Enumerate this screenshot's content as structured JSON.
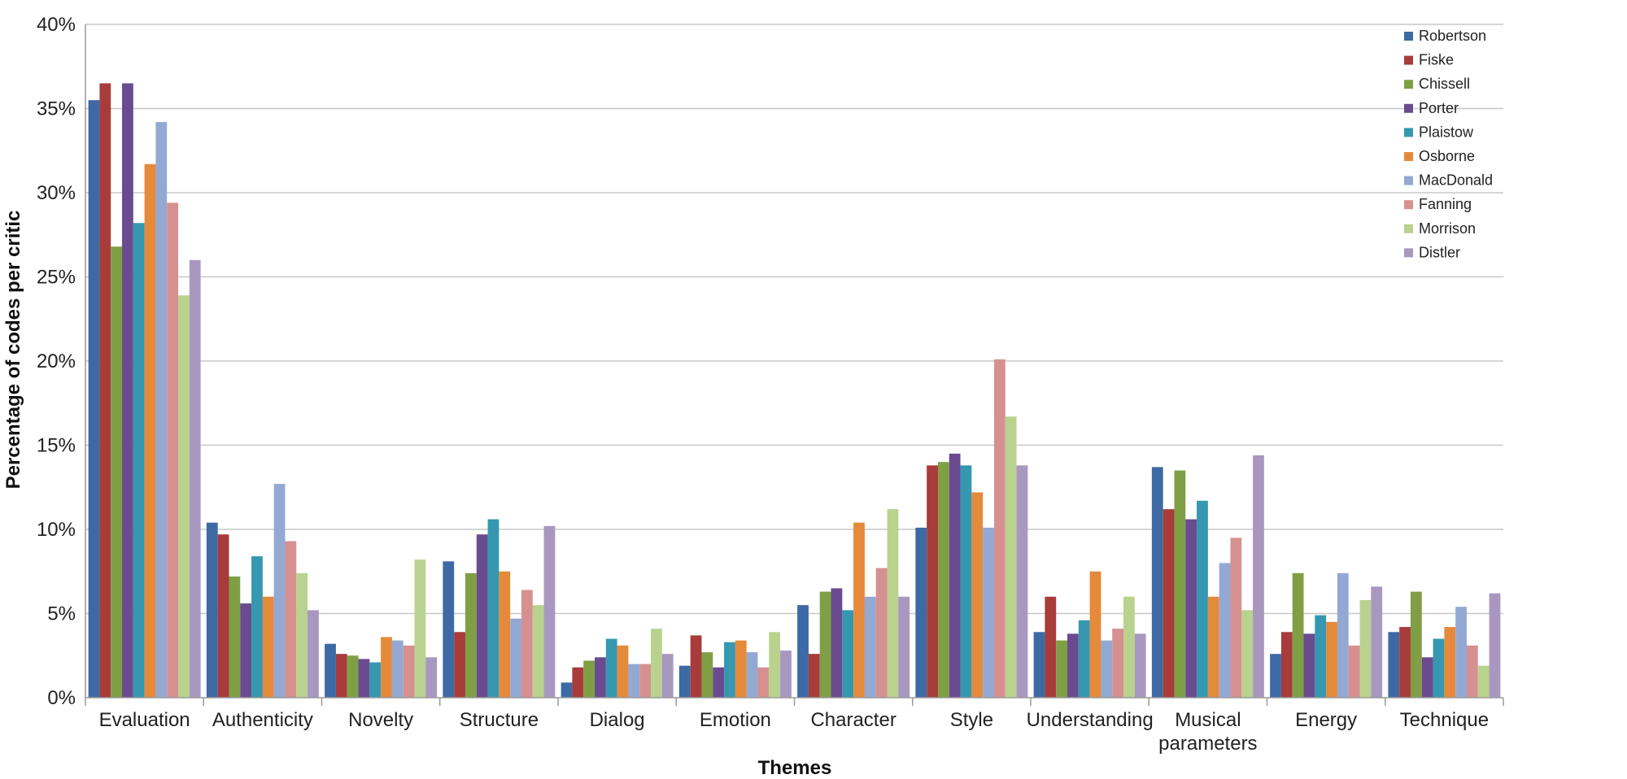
{
  "chart_data": {
    "type": "bar",
    "title": "",
    "xlabel": "Themes",
    "ylabel": "Percentage of codes per critic",
    "ylim": [
      0,
      40
    ],
    "yticks": [
      "0%",
      "5%",
      "10%",
      "15%",
      "20%",
      "25%",
      "30%",
      "35%",
      "40%"
    ],
    "grid": true,
    "legend_position": "top-right",
    "categories": [
      [
        "Evaluation"
      ],
      [
        "Authenticity"
      ],
      [
        "Novelty"
      ],
      [
        "Structure"
      ],
      [
        "Dialog"
      ],
      [
        "Emotion"
      ],
      [
        "Character"
      ],
      [
        "Style"
      ],
      [
        "Understanding"
      ],
      [
        "Musical",
        "parameters"
      ],
      [
        "Energy"
      ],
      [
        "Technique"
      ]
    ],
    "series": [
      {
        "name": "Robertson",
        "color": "#3d6aa5",
        "values": [
          35.5,
          10.4,
          3.2,
          8.1,
          0.9,
          1.9,
          5.5,
          10.1,
          3.9,
          13.7,
          2.6,
          3.9
        ]
      },
      {
        "name": "Fiske",
        "color": "#a73c3b",
        "values": [
          36.5,
          9.7,
          2.6,
          3.9,
          1.8,
          3.7,
          2.6,
          13.8,
          6.0,
          11.2,
          3.9,
          4.2
        ]
      },
      {
        "name": "Chissell",
        "color": "#7f9f45",
        "values": [
          26.8,
          7.2,
          2.5,
          7.4,
          2.2,
          2.7,
          6.3,
          14.0,
          3.4,
          13.5,
          7.4,
          6.3
        ]
      },
      {
        "name": "Porter",
        "color": "#6a4b8f",
        "values": [
          36.5,
          5.6,
          2.3,
          9.7,
          2.4,
          1.8,
          6.5,
          14.5,
          3.8,
          10.6,
          3.8,
          2.4
        ]
      },
      {
        "name": "Plaistow",
        "color": "#3598b0",
        "values": [
          28.2,
          8.4,
          2.1,
          10.6,
          3.5,
          3.3,
          5.2,
          13.8,
          4.6,
          11.7,
          4.9,
          3.5
        ]
      },
      {
        "name": "Osborne",
        "color": "#e58a3a",
        "values": [
          31.7,
          6.0,
          3.6,
          7.5,
          3.1,
          3.4,
          10.4,
          12.2,
          7.5,
          6.0,
          4.5,
          4.2
        ]
      },
      {
        "name": "MacDonald",
        "color": "#93a9d4",
        "values": [
          34.2,
          12.7,
          3.4,
          4.7,
          2.0,
          2.7,
          6.0,
          10.1,
          3.4,
          8.0,
          7.4,
          5.4
        ]
      },
      {
        "name": "Fanning",
        "color": "#d79090",
        "values": [
          29.4,
          9.3,
          3.1,
          6.4,
          2.0,
          1.8,
          7.7,
          20.1,
          4.1,
          9.5,
          3.1,
          3.1
        ]
      },
      {
        "name": "Morrison",
        "color": "#b9d28e",
        "values": [
          23.9,
          7.4,
          8.2,
          5.5,
          4.1,
          3.9,
          11.2,
          16.7,
          6.0,
          5.2,
          5.8,
          1.9
        ]
      },
      {
        "name": "Distler",
        "color": "#a898c0",
        "values": [
          26.0,
          5.2,
          2.4,
          10.2,
          2.6,
          2.8,
          6.0,
          13.8,
          3.8,
          14.4,
          6.6,
          6.2
        ]
      }
    ]
  }
}
